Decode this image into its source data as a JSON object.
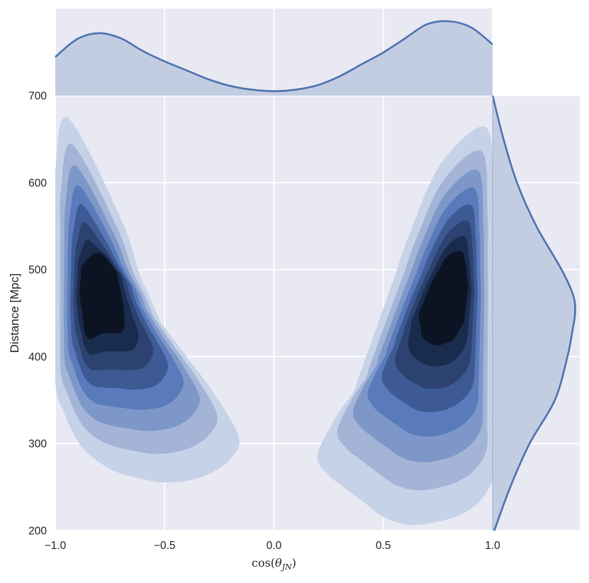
{
  "chart_data": {
    "type": "heatmap",
    "subtype": "kde joint plot with marginal densities",
    "title": "",
    "xlabel": "cos(θ_JN)",
    "ylabel": "Distance [Mpc]",
    "xlim": [
      -1.0,
      1.0
    ],
    "ylim": [
      200,
      700
    ],
    "x_ticks": [
      -1.0,
      -0.5,
      0.0,
      0.5,
      1.0
    ],
    "x_tick_labels": [
      "−1.0",
      "−0.5",
      "0.0",
      "0.5",
      "1.0"
    ],
    "y_ticks": [
      200,
      300,
      400,
      500,
      600,
      700
    ],
    "y_tick_labels": [
      "200",
      "300",
      "400",
      "500",
      "600",
      "700"
    ],
    "grid": true,
    "legend": "none",
    "joint_density": {
      "levels": 8,
      "modes": [
        {
          "x": -0.78,
          "y": 470
        },
        {
          "x": 0.78,
          "y": 470
        }
      ],
      "left_lobe": {
        "outer_ring": [
          [
            -1.0,
            360
          ],
          [
            -1.0,
            665
          ],
          [
            -0.94,
            675
          ],
          [
            -0.83,
            650
          ],
          [
            -0.74,
            590
          ],
          [
            -0.64,
            510
          ],
          [
            -0.52,
            440
          ],
          [
            -0.4,
            400
          ],
          [
            -0.28,
            360
          ],
          [
            -0.16,
            308
          ],
          [
            -0.18,
            285
          ],
          [
            -0.34,
            258
          ],
          [
            -0.54,
            255
          ],
          [
            -0.76,
            270
          ],
          [
            -0.9,
            300
          ]
        ],
        "inner_ring": [
          [
            -0.86,
            418
          ],
          [
            -0.89,
            472
          ],
          [
            -0.88,
            504
          ],
          [
            -0.83,
            518
          ],
          [
            -0.79,
            520
          ],
          [
            -0.72,
            498
          ],
          [
            -0.69,
            462
          ],
          [
            -0.68,
            436
          ],
          [
            -0.7,
            427
          ],
          [
            -0.78,
            427
          ]
        ]
      },
      "right_lobe": {
        "outer_ring": [
          [
            1.0,
            665
          ],
          [
            0.9,
            660
          ],
          [
            0.78,
            630
          ],
          [
            0.66,
            570
          ],
          [
            0.55,
            490
          ],
          [
            0.45,
            420
          ],
          [
            0.35,
            350
          ],
          [
            0.18,
            300
          ],
          [
            0.22,
            270
          ],
          [
            0.36,
            242
          ],
          [
            0.56,
            205
          ],
          [
            0.76,
            210
          ],
          [
            0.9,
            222
          ],
          [
            1.0,
            250
          ]
        ],
        "inner_ring": [
          [
            0.68,
            420
          ],
          [
            0.66,
            448
          ],
          [
            0.72,
            485
          ],
          [
            0.8,
            520
          ],
          [
            0.87,
            520
          ],
          [
            0.89,
            480
          ],
          [
            0.87,
            440
          ],
          [
            0.82,
            418
          ],
          [
            0.74,
            412
          ]
        ]
      },
      "colors": [
        "#c6d2e7",
        "#a3b4d7",
        "#7d97c9",
        "#5a7bbb",
        "#3e5a94",
        "#2c4270",
        "#1a2c4d",
        "#0c1424"
      ]
    },
    "marginal_x": {
      "x": [
        -1.0,
        -0.9,
        -0.8,
        -0.7,
        -0.6,
        -0.5,
        -0.4,
        -0.3,
        -0.2,
        -0.1,
        0.0,
        0.1,
        0.2,
        0.3,
        0.4,
        0.5,
        0.6,
        0.7,
        0.8,
        0.9,
        1.0
      ],
      "density": [
        0.52,
        0.76,
        0.84,
        0.77,
        0.6,
        0.46,
        0.34,
        0.22,
        0.13,
        0.08,
        0.06,
        0.08,
        0.14,
        0.26,
        0.42,
        0.58,
        0.77,
        0.96,
        1.0,
        0.92,
        0.69
      ]
    },
    "marginal_y": {
      "y": [
        200,
        250,
        300,
        350,
        400,
        430,
        450,
        470,
        500,
        550,
        600,
        650,
        700
      ],
      "density": [
        0.02,
        0.21,
        0.44,
        0.74,
        0.89,
        0.95,
        0.98,
        0.96,
        0.82,
        0.52,
        0.29,
        0.13,
        0.0
      ]
    },
    "colors": {
      "panel_background": "#e9e9f3",
      "grid": "#ffffff",
      "line": "#4c72b0",
      "marginal_fill": "#c3cde2"
    }
  }
}
